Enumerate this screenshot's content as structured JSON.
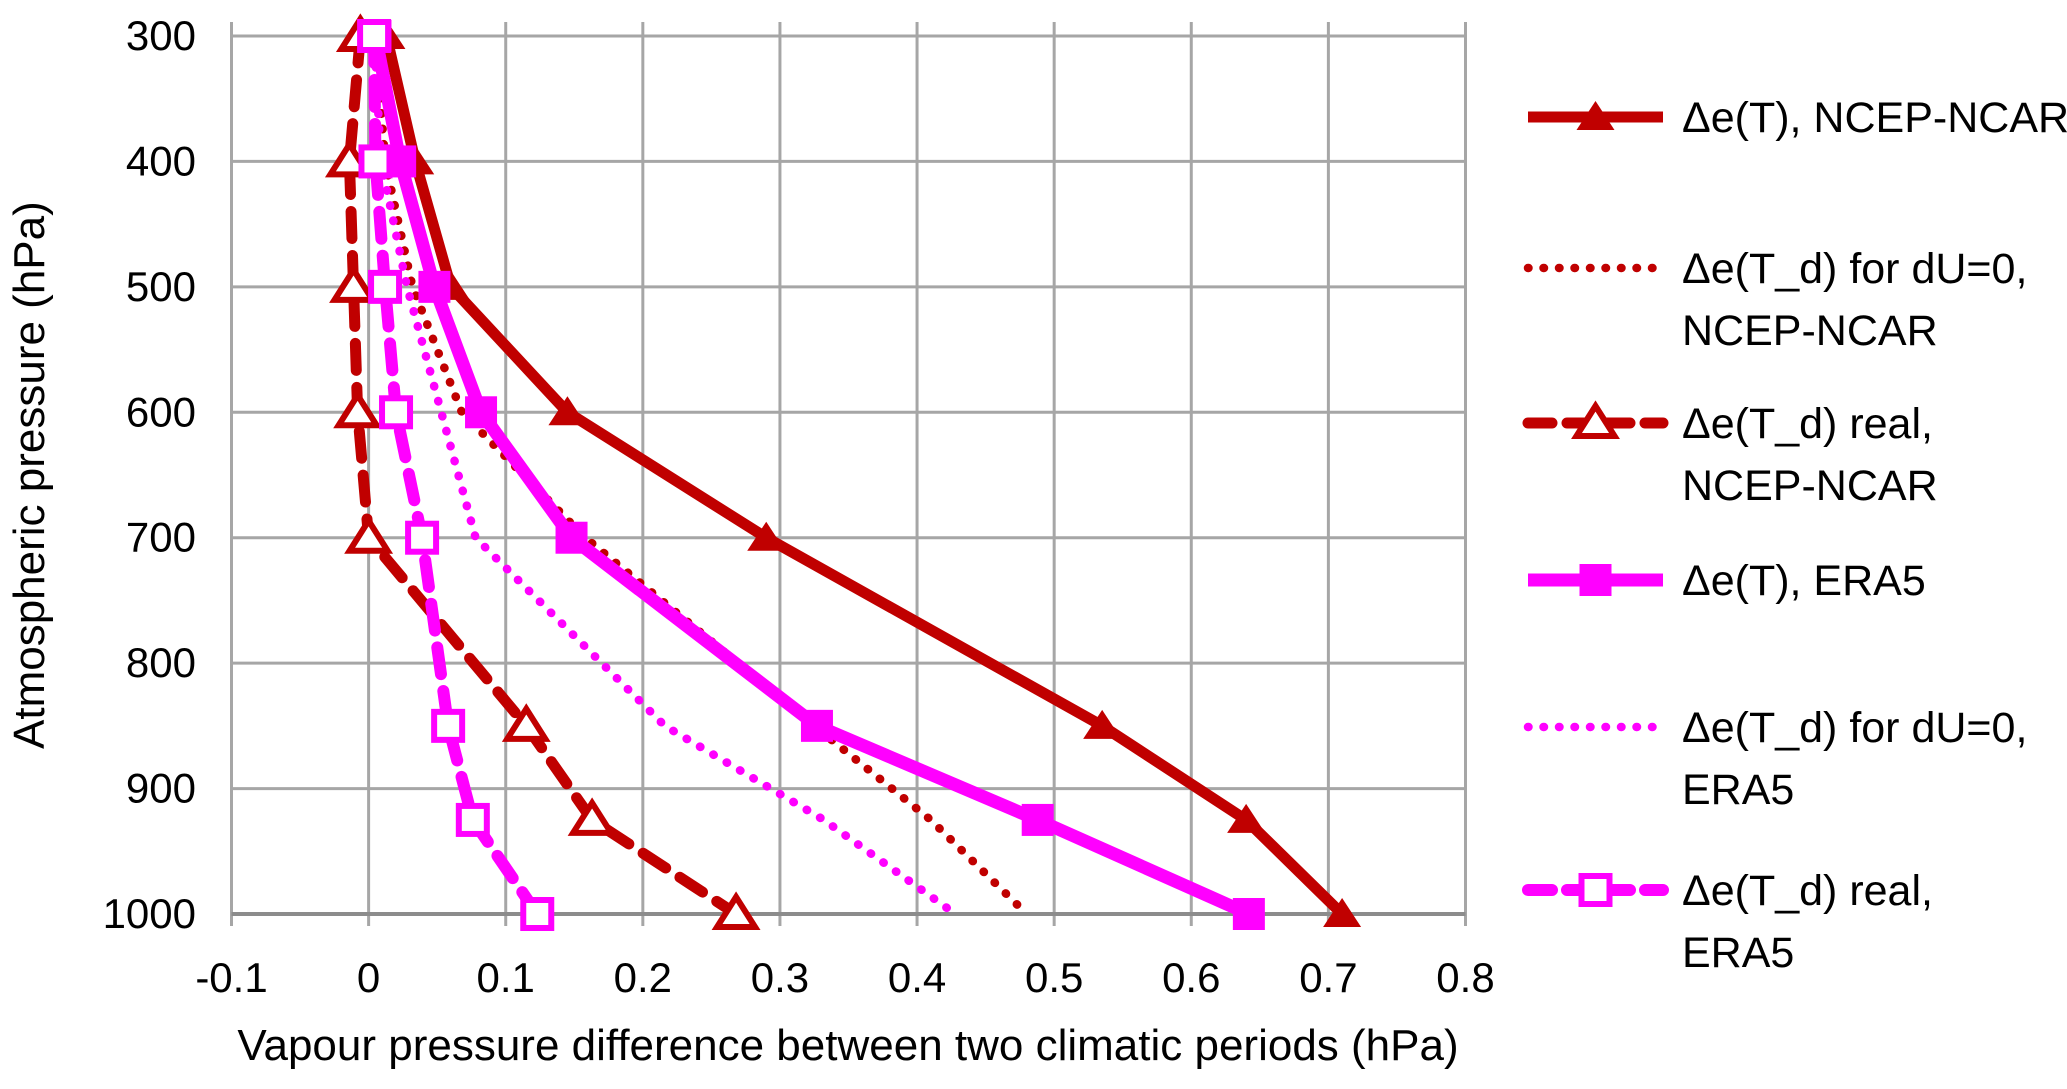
{
  "chart_data": {
    "type": "line",
    "title": "",
    "xlabel": "Vapour pressure difference between two climatic periods (hPa)",
    "ylabel": "Atmospheric pressure (hPa)",
    "xlim": [
      -0.1,
      0.8
    ],
    "ylim": [
      300,
      1000
    ],
    "y_inverted": true,
    "grid": true,
    "legend_position": "right",
    "x_ticks": [
      -0.1,
      0,
      0.1,
      0.2,
      0.3,
      0.4,
      0.5,
      0.6,
      0.7,
      0.8
    ],
    "x_tick_labels": [
      "-0.1",
      "0",
      "0.1",
      "0.2",
      "0.3",
      "0.4",
      "0.5",
      "0.6",
      "0.7",
      "0.8"
    ],
    "y_ticks": [
      300,
      400,
      500,
      600,
      700,
      800,
      900,
      1000
    ],
    "y_tick_labels": [
      "300",
      "400",
      "500",
      "600",
      "700",
      "800",
      "900",
      "1000"
    ],
    "pressure_levels": [
      300,
      400,
      500,
      600,
      700,
      850,
      925,
      1000
    ],
    "series": [
      {
        "name": "Δe(T), NCEP-NCAR",
        "legend_lines": [
          "Δe(T), NCEP-NCAR"
        ],
        "color": "#c00000",
        "style": "solid",
        "marker": "triangle-filled",
        "values": [
          0.013,
          0.034,
          0.06,
          0.145,
          0.29,
          0.535,
          0.64,
          0.71
        ]
      },
      {
        "name": "Δe(T_d) for dU=0, NCEP-NCAR",
        "legend_lines": [
          "Δe(T_d) for dU=0,",
          "NCEP-NCAR"
        ],
        "color": "#c00000",
        "style": "dotted",
        "marker": "none",
        "values": [
          0.005,
          0.012,
          0.032,
          0.068,
          0.158,
          0.325,
          0.41,
          0.48
        ]
      },
      {
        "name": "Δe(T_d) real, NCEP-NCAR",
        "legend_lines": [
          "Δe(T_d) real,",
          "NCEP-NCAR"
        ],
        "color": "#c00000",
        "style": "dashed",
        "marker": "triangle-open",
        "values": [
          -0.006,
          -0.014,
          -0.011,
          -0.008,
          0.0,
          0.115,
          0.163,
          0.268
        ]
      },
      {
        "name": "Δe(T), ERA5",
        "legend_lines": [
          "Δe(T), ERA5"
        ],
        "color": "#ff00ff",
        "style": "solid",
        "marker": "square-filled",
        "values": [
          0.005,
          0.023,
          0.048,
          0.082,
          0.148,
          0.327,
          0.488,
          0.642
        ]
      },
      {
        "name": "Δe(T_d) for dU=0, ERA5",
        "legend_lines": [
          "Δe(T_d) for dU=0,",
          "ERA5"
        ],
        "color": "#ff00ff",
        "style": "dotted",
        "marker": "none",
        "values": [
          0.004,
          0.009,
          0.028,
          0.053,
          0.078,
          0.216,
          0.332,
          0.428
        ]
      },
      {
        "name": "Δe(T_d) real, ERA5",
        "legend_lines": [
          "Δe(T_d) real,",
          "ERA5"
        ],
        "color": "#ff00ff",
        "style": "dashed",
        "marker": "square-open",
        "values": [
          0.004,
          0.005,
          0.012,
          0.02,
          0.039,
          0.058,
          0.076,
          0.123
        ]
      }
    ]
  },
  "colors": {
    "dark_red": "#c00000",
    "magenta": "#ff00ff",
    "grid": "#a6a6a6",
    "axis": "#8c8c8c",
    "text": "#000000",
    "background": "#ffffff"
  }
}
